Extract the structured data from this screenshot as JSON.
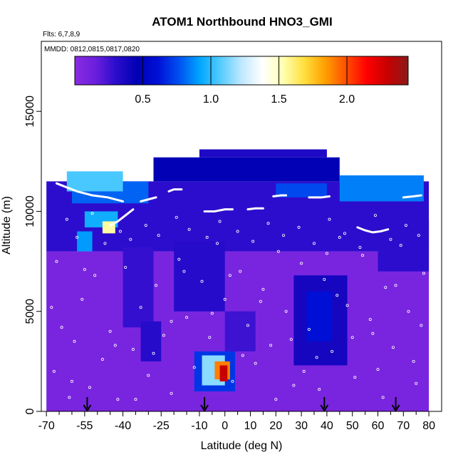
{
  "chart_data": {
    "type": "heatmap",
    "title": "ATOM1 Northbound HNO3_GMI",
    "subtitle_lines": [
      "Flts: 6,7,8,9",
      "MMDD: 0812,0815,0817,0820"
    ],
    "xlabel": "Latitude (deg N)",
    "ylabel": "Altitude (m)",
    "xlim": [
      -72,
      85
    ],
    "ylim": [
      0,
      18500
    ],
    "xticks": [
      -70,
      -55,
      -40,
      -25,
      -10,
      0,
      10,
      20,
      30,
      40,
      50,
      60,
      70,
      80
    ],
    "xtick_labels": [
      "-70",
      "-55",
      "-40",
      "-25",
      "-10",
      "0",
      "10",
      "20",
      "30",
      "40",
      "50",
      "60",
      "70",
      "80"
    ],
    "x_minor_ticks": [
      -65,
      -60,
      -50,
      -45,
      -35,
      -30,
      -20,
      -15,
      -5,
      5,
      15,
      25,
      35,
      45,
      55,
      65,
      75
    ],
    "yticks": [
      0,
      5000,
      10000,
      15000
    ],
    "ytick_labels": [
      "0",
      "5000",
      "10000",
      "15000"
    ],
    "colorbar": {
      "range": [
        0,
        2.45
      ],
      "ticks": [
        0.5,
        1.0,
        1.5,
        2.0
      ],
      "tick_labels": [
        "0.5",
        "1.0",
        "1.5",
        "2.0"
      ],
      "colors": [
        "#8a2be2",
        "#6a1fdc",
        "#2a0ccc",
        "#0000b4",
        "#0010d8",
        "#0050f0",
        "#00a6ff",
        "#55ccff",
        "#bfe8ff",
        "#ffffff",
        "#ffffb0",
        "#ffe040",
        "#ffa000",
        "#ff5000",
        "#ff0000",
        "#c80000",
        "#8b1a1a"
      ]
    },
    "profile_markers_lat": [
      -54,
      -8,
      39,
      67
    ],
    "regions": [
      {
        "lat": [
          -70,
          80
        ],
        "alt": [
          0,
          8000
        ],
        "value": 0.08
      },
      {
        "lat": [
          -70,
          80
        ],
        "alt": [
          8000,
          11500
        ],
        "value": 0.3
      },
      {
        "lat": [
          -28,
          45
        ],
        "alt": [
          11500,
          12700
        ],
        "value": 0.45
      },
      {
        "lat": [
          -10,
          40
        ],
        "alt": [
          12700,
          13100
        ],
        "value": 0.35
      },
      {
        "lat": [
          -60,
          -30
        ],
        "alt": [
          10400,
          11500
        ],
        "value": 0.8
      },
      {
        "lat": [
          -62,
          -40
        ],
        "alt": [
          11000,
          12000
        ],
        "value": 1.05
      },
      {
        "lat": [
          45,
          78
        ],
        "alt": [
          10500,
          11800
        ],
        "value": 0.85
      },
      {
        "lat": [
          20,
          40
        ],
        "alt": [
          10700,
          11400
        ],
        "value": 0.75
      },
      {
        "lat": [
          -55,
          -42
        ],
        "alt": [
          9200,
          10000
        ],
        "value": 0.95
      },
      {
        "lat": [
          -48,
          -43
        ],
        "alt": [
          8900,
          9500
        ],
        "value": 1.55
      },
      {
        "lat": [
          -58,
          -52
        ],
        "alt": [
          8000,
          9000
        ],
        "value": 0.9
      },
      {
        "lat": [
          -40,
          -28
        ],
        "alt": [
          4200,
          8200
        ],
        "value": 0.28
      },
      {
        "lat": [
          -20,
          0
        ],
        "alt": [
          5000,
          8500
        ],
        "value": 0.32
      },
      {
        "lat": [
          27,
          48
        ],
        "alt": [
          2300,
          6800
        ],
        "value": 0.38
      },
      {
        "lat": [
          32,
          42
        ],
        "alt": [
          3500,
          6000
        ],
        "value": 0.6
      },
      {
        "lat": [
          60,
          80
        ],
        "alt": [
          7000,
          9500
        ],
        "value": 0.3
      },
      {
        "lat": [
          -12,
          4
        ],
        "alt": [
          1000,
          3000
        ],
        "value": 0.7
      },
      {
        "lat": [
          -9,
          0
        ],
        "alt": [
          1300,
          2800
        ],
        "value": 1.15
      },
      {
        "lat": [
          -4,
          2
        ],
        "alt": [
          1600,
          2500
        ],
        "value": 1.9
      },
      {
        "lat": [
          -2,
          1
        ],
        "alt": [
          1500,
          2300
        ],
        "value": 2.3
      },
      {
        "lat": [
          -33,
          -25
        ],
        "alt": [
          2500,
          4500
        ],
        "value": 0.32
      },
      {
        "lat": [
          0,
          12
        ],
        "alt": [
          3000,
          5000
        ],
        "value": 0.26
      }
    ],
    "flight_tracks": [
      {
        "lat": [
          -66,
          -62,
          -58,
          -52,
          -46,
          -40
        ],
        "alt": [
          11400,
          11200,
          11000,
          10800,
          10700,
          10500
        ]
      },
      {
        "lat": [
          -45,
          -42,
          -39,
          -36
        ],
        "alt": [
          9300,
          9500,
          9800,
          10100
        ]
      },
      {
        "lat": [
          -33,
          -30,
          -27
        ],
        "alt": [
          10500,
          10600,
          10700
        ]
      },
      {
        "lat": [
          -22,
          -20,
          -17
        ],
        "alt": [
          11000,
          11100,
          11100
        ]
      },
      {
        "lat": [
          -8,
          -4,
          0,
          3
        ],
        "alt": [
          10000,
          10000,
          10100,
          10100
        ]
      },
      {
        "lat": [
          9,
          12,
          15
        ],
        "alt": [
          10100,
          10150,
          10150
        ]
      },
      {
        "lat": [
          19,
          22,
          24
        ],
        "alt": [
          10750,
          10800,
          10800
        ]
      },
      {
        "lat": [
          33,
          38,
          41
        ],
        "alt": [
          10700,
          10700,
          10750
        ]
      },
      {
        "lat": [
          52,
          55,
          58,
          61,
          64
        ],
        "alt": [
          9200,
          9050,
          8950,
          9000,
          9100
        ]
      },
      {
        "lat": [
          70,
          74,
          77
        ],
        "alt": [
          10700,
          10750,
          10800
        ]
      }
    ],
    "obs_points": [
      [
        -67,
        2000
      ],
      [
        -64,
        4200
      ],
      [
        -61,
        700
      ],
      [
        -59,
        3500
      ],
      [
        -56,
        5600
      ],
      [
        -53,
        1200
      ],
      [
        -51,
        6800
      ],
      [
        -48,
        2600
      ],
      [
        -45,
        4000
      ],
      [
        -42,
        600
      ],
      [
        -39,
        7200
      ],
      [
        -36,
        3100
      ],
      [
        -33,
        5200
      ],
      [
        -30,
        1800
      ],
      [
        -27,
        6300
      ],
      [
        -24,
        3800
      ],
      [
        -21,
        900
      ],
      [
        -18,
        7600
      ],
      [
        -15,
        4700
      ],
      [
        -12,
        2200
      ],
      [
        -9,
        6500
      ],
      [
        -6,
        3700
      ],
      [
        -3,
        8400
      ],
      [
        0,
        5600
      ],
      [
        3,
        1500
      ],
      [
        6,
        7000
      ],
      [
        9,
        4300
      ],
      [
        12,
        2400
      ],
      [
        15,
        6100
      ],
      [
        18,
        3300
      ],
      [
        21,
        8000
      ],
      [
        24,
        5000
      ],
      [
        27,
        1300
      ],
      [
        30,
        7400
      ],
      [
        33,
        4100
      ],
      [
        36,
        2700
      ],
      [
        39,
        6600
      ],
      [
        42,
        3000
      ],
      [
        45,
        8700
      ],
      [
        48,
        5300
      ],
      [
        51,
        1700
      ],
      [
        54,
        7800
      ],
      [
        57,
        4600
      ],
      [
        60,
        2100
      ],
      [
        63,
        6200
      ],
      [
        66,
        3200
      ],
      [
        69,
        8300
      ],
      [
        72,
        5000
      ],
      [
        75,
        1400
      ],
      [
        78,
        6900
      ],
      [
        -66,
        7500
      ],
      [
        -62,
        9600
      ],
      [
        -58,
        8700
      ],
      [
        -52,
        9900
      ],
      [
        -47,
        8400
      ],
      [
        -41,
        9000
      ],
      [
        -37,
        8600
      ],
      [
        -31,
        9300
      ],
      [
        -26,
        8800
      ],
      [
        -19,
        9700
      ],
      [
        -14,
        9100
      ],
      [
        -7,
        8700
      ],
      [
        -2,
        9500
      ],
      [
        5,
        9000
      ],
      [
        11,
        8500
      ],
      [
        17,
        9400
      ],
      [
        23,
        8800
      ],
      [
        29,
        9200
      ],
      [
        35,
        8400
      ],
      [
        41,
        9600
      ],
      [
        47,
        8900
      ],
      [
        53,
        8200
      ],
      [
        59,
        9800
      ],
      [
        65,
        8600
      ],
      [
        71,
        9300
      ],
      [
        76,
        8800
      ],
      [
        -60,
        1500
      ],
      [
        -43,
        3300
      ],
      [
        -21,
        4500
      ],
      [
        -5,
        4900
      ],
      [
        7,
        2800
      ],
      [
        14,
        5500
      ],
      [
        26,
        3600
      ],
      [
        37,
        1100
      ],
      [
        44,
        5800
      ],
      [
        58,
        3900
      ],
      [
        67,
        6300
      ],
      [
        74,
        2500
      ],
      [
        -68,
        5200
      ],
      [
        -35,
        600
      ],
      [
        -16,
        7000
      ],
      [
        2,
        6800
      ],
      [
        20,
        600
      ],
      [
        31,
        2000
      ],
      [
        50,
        3700
      ],
      [
        62,
        700
      ],
      [
        77,
        4300
      ],
      [
        -55,
        7100
      ],
      [
        -28,
        2900
      ],
      [
        40,
        7900
      ]
    ]
  }
}
